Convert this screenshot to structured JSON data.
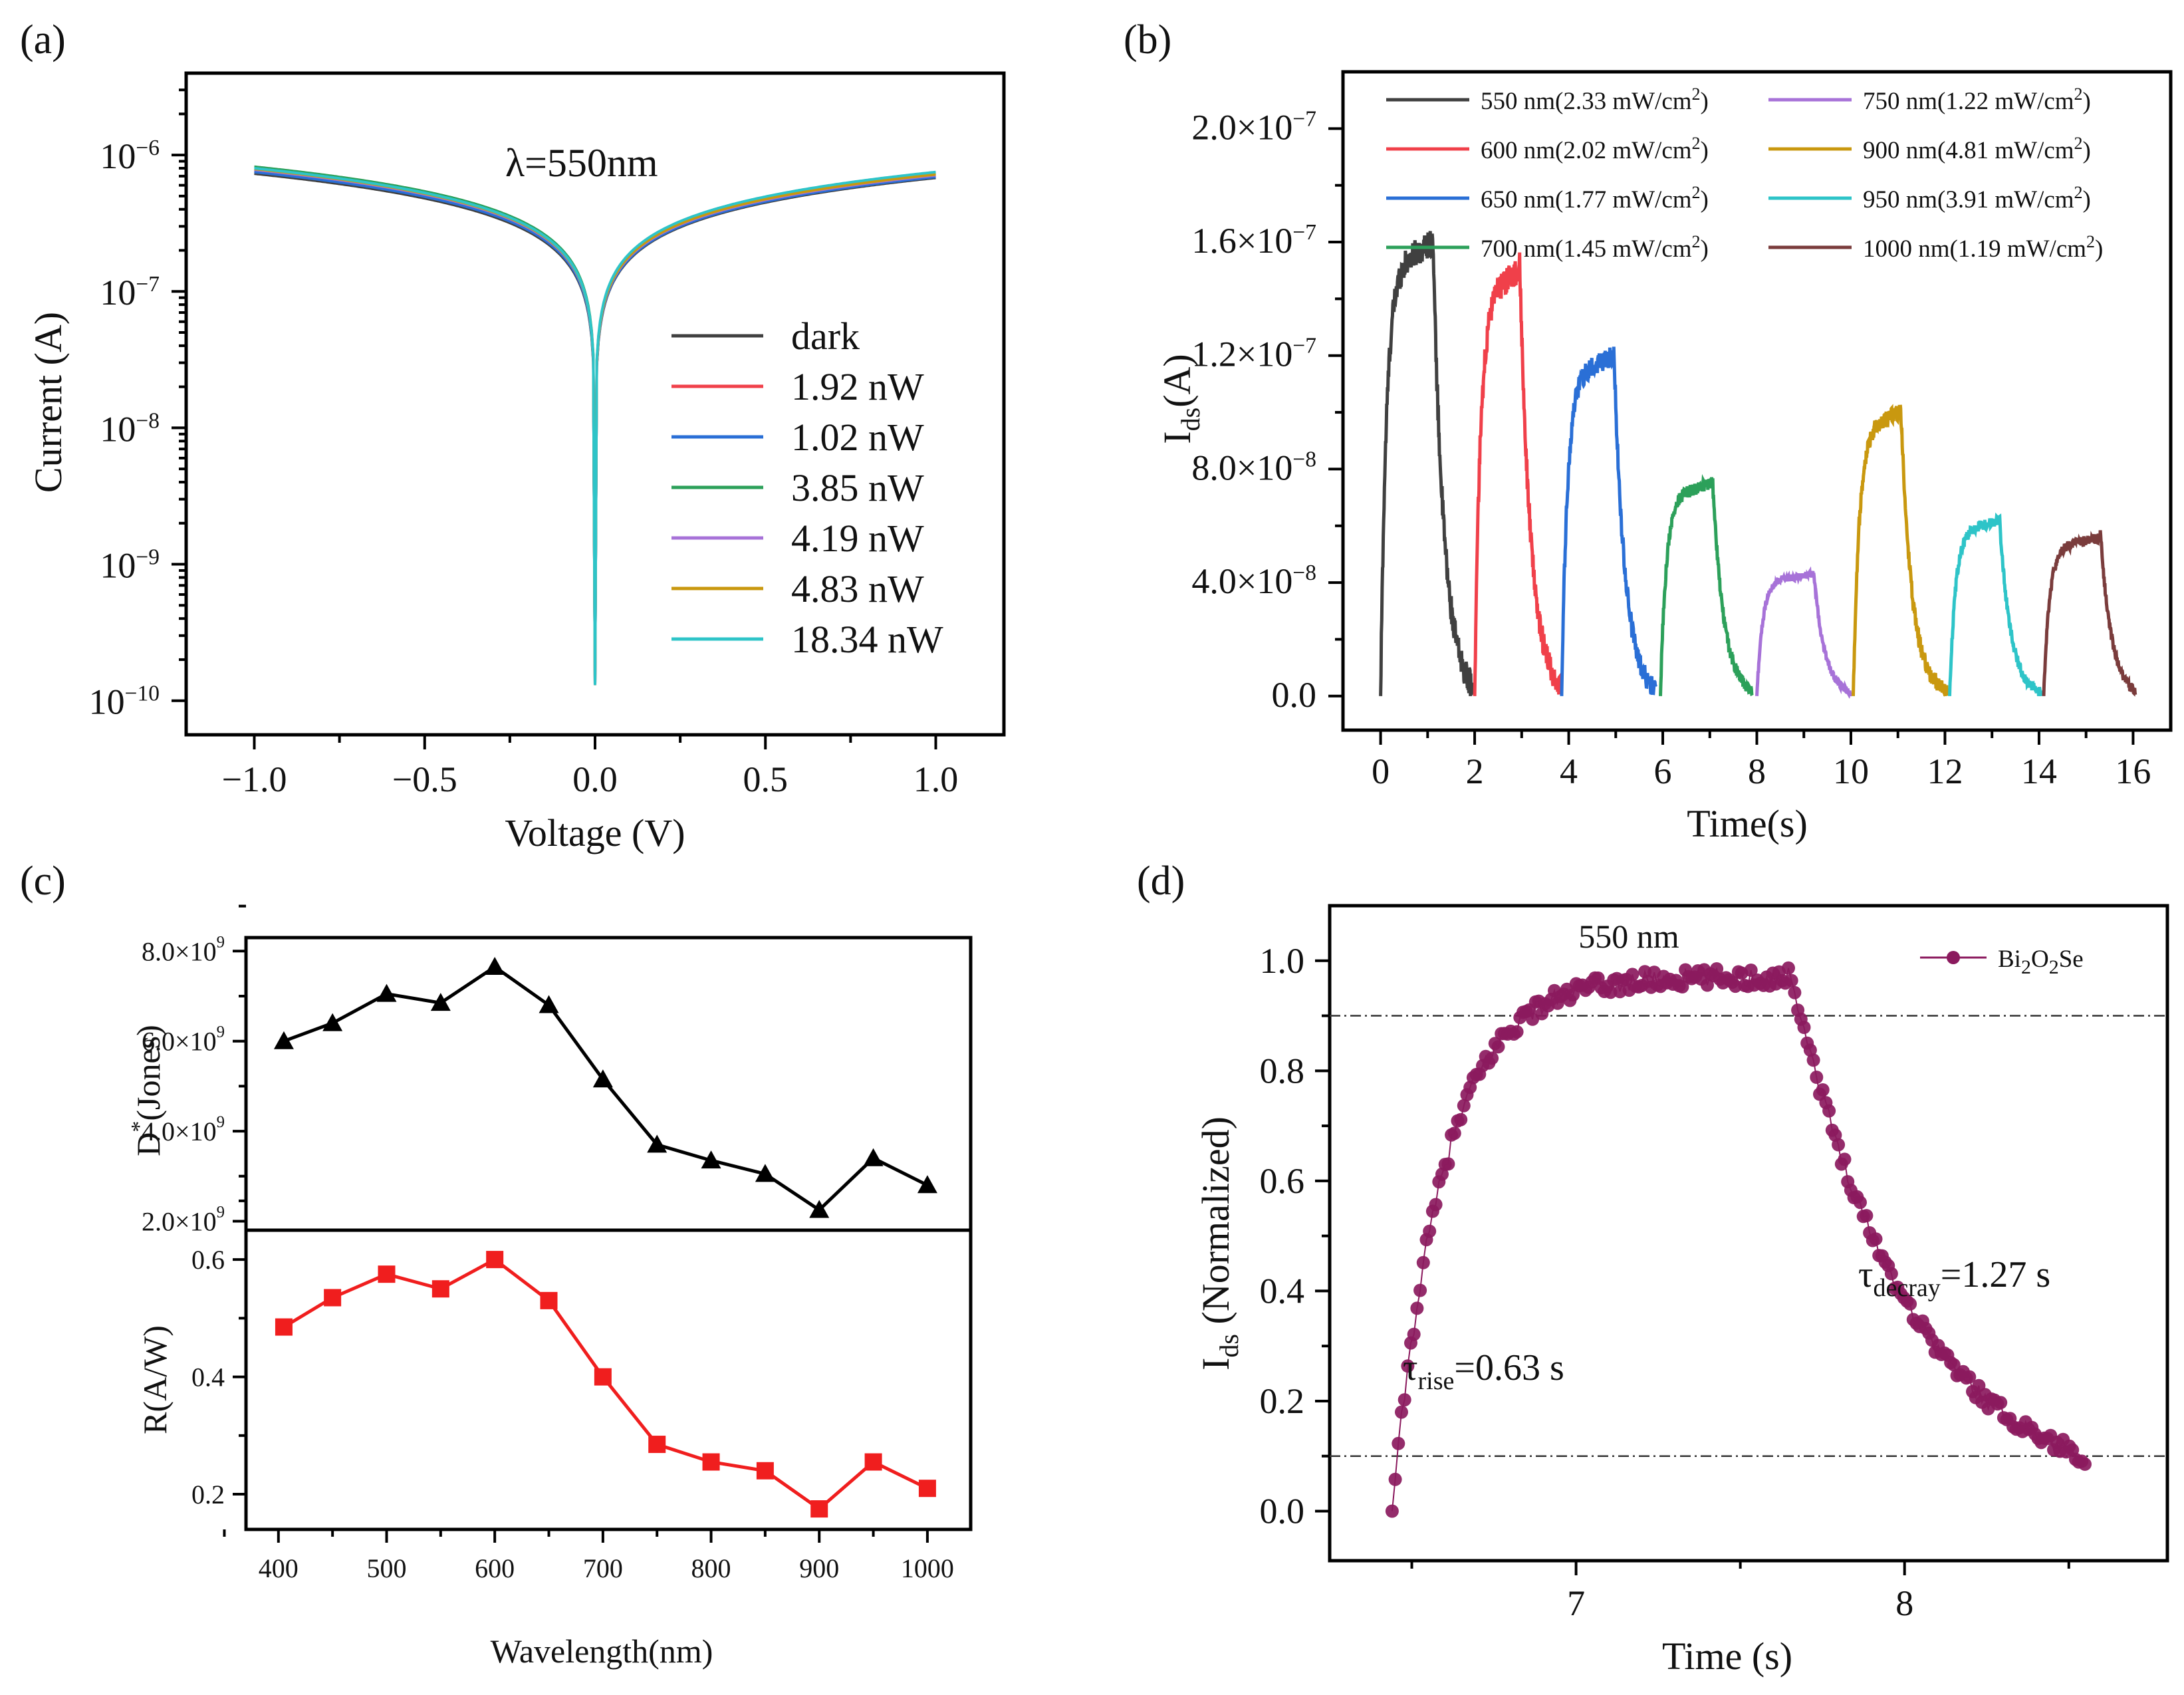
{
  "chart_data": [
    {
      "id": "a",
      "panel_label": "(a)",
      "type": "line",
      "yscale": "log",
      "annotation": "λ=550nm",
      "xlabel": "Voltage (V)",
      "ylabel": "Current (A)",
      "xlim": [
        -1.2,
        1.2
      ],
      "xticks": [
        "−1.0",
        "−0.5",
        "0.0",
        "0.5",
        "1.0"
      ],
      "xtick_values": [
        -1.0,
        -0.5,
        0.0,
        0.5,
        1.0
      ],
      "ylim_exp": [
        -10.25,
        -5.4
      ],
      "ytick_exponents": [
        -10,
        -9,
        -8,
        -7,
        -6
      ],
      "ytick_labels": [
        "10",
        "10",
        "10",
        "10",
        "10"
      ],
      "ytick_sup": [
        "−10",
        "−9",
        "−8",
        "−7",
        "−6"
      ],
      "model": "|I| = I1 * |V|^0.6 (+ small dip at 0 V)",
      "series": [
        {
          "name": "dark",
          "color": "#404040",
          "I_at_minus1V": 7.3e-07,
          "I_at_plus1V": 6.8e-07
        },
        {
          "name": "1.92 nW",
          "color": "#f0404a",
          "I_at_minus1V": 7.6e-07,
          "I_at_plus1V": 7e-07
        },
        {
          "name": "1.02 nW",
          "color": "#2a6fd6",
          "I_at_minus1V": 7.5e-07,
          "I_at_plus1V": 6.9e-07
        },
        {
          "name": "3.85 nW",
          "color": "#2ca05a",
          "I_at_minus1V": 8.2e-07,
          "I_at_plus1V": 7.3e-07
        },
        {
          "name": "4.19 nW",
          "color": "#a772d8",
          "I_at_minus1V": 7.8e-07,
          "I_at_plus1V": 7.1e-07
        },
        {
          "name": "4.83 nW",
          "color": "#c9980f",
          "I_at_minus1V": 7.9e-07,
          "I_at_plus1V": 7.2e-07
        },
        {
          "name": "18.34 nW",
          "color": "#2ec4c8",
          "I_at_minus1V": 8e-07,
          "I_at_plus1V": 7.5e-07
        }
      ],
      "min_current": 1.3e-10
    },
    {
      "id": "b",
      "panel_label": "(b)",
      "type": "line",
      "xlabel": "Time(s)",
      "ylabel_main": "I",
      "ylabel_sub": "ds",
      "ylabel_tail": "(A)",
      "xlim": [
        -0.8,
        16.8
      ],
      "ylim": [
        -1.2e-08,
        2.2e-07
      ],
      "xticks": [
        0,
        2,
        4,
        6,
        8,
        10,
        12,
        14,
        16
      ],
      "ytick_values": [
        0,
        4e-08,
        8e-08,
        1.2e-07,
        1.6e-07,
        2e-07
      ],
      "ytick_labels": [
        "0.0",
        "4.0×10",
        "8.0×10",
        "1.2×10",
        "1.6×10",
        "2.0×10"
      ],
      "ytick_sup": [
        "",
        "−8",
        "−8",
        "−7",
        "−7",
        "−7"
      ],
      "legend_sup": "2",
      "series": [
        {
          "label_pre": "550 nm(2.33 mW/cm",
          "label_post": ")",
          "color": "#404040",
          "t_start": 0.0,
          "peak": 1.6e-07,
          "t_on": 1.1,
          "t_end": 1.95
        },
        {
          "label_pre": "600 nm(2.02 mW/cm",
          "label_post": ")",
          "color": "#f0404a",
          "t_start": 2.0,
          "peak": 1.5e-07,
          "t_on": 0.95,
          "t_end": 1.85
        },
        {
          "label_pre": "650 nm(1.77 mW/cm",
          "label_post": ")",
          "color": "#2a6fd6",
          "t_start": 3.85,
          "peak": 1.2e-07,
          "t_on": 1.1,
          "t_end": 2.0
        },
        {
          "label_pre": "700 nm(1.45 mW/cm",
          "label_post": ")",
          "color": "#2ca05a",
          "t_start": 5.95,
          "peak": 7.5e-08,
          "t_on": 1.1,
          "t_end": 1.95
        },
        {
          "label_pre": "750 nm(1.22 mW/cm",
          "label_post": ")",
          "color": "#a772d8",
          "t_start": 8.0,
          "peak": 4.3e-08,
          "t_on": 1.2,
          "t_end": 2.0
        },
        {
          "label_pre": "900 nm(4.81 mW/cm",
          "label_post": ")",
          "color": "#c9980f",
          "t_start": 10.05,
          "peak": 1e-07,
          "t_on": 1.0,
          "t_end": 2.0
        },
        {
          "label_pre": "950 nm(3.91 mW/cm",
          "label_post": ")",
          "color": "#2ec4c8",
          "t_start": 12.1,
          "peak": 6.2e-08,
          "t_on": 1.05,
          "t_end": 1.95
        },
        {
          "label_pre": "1000 nm(1.19 mW/cm",
          "label_post": ")",
          "color": "#7a3c3c",
          "t_start": 14.1,
          "peak": 5.6e-08,
          "t_on": 1.2,
          "t_end": 1.95
        }
      ]
    },
    {
      "id": "c",
      "panel_label": "(c)",
      "type": "line",
      "xlabel": "Wavelength(nm)",
      "xlim": [
        370,
        1040
      ],
      "xticks": [
        400,
        500,
        600,
        700,
        800,
        900,
        1000
      ],
      "top": {
        "ylabel_main": "D",
        "ylabel_sup": "*",
        "ylabel_tail": "(Jones)",
        "color": "#000000",
        "marker": "triangle",
        "ylim": [
          1800000000.0,
          8300000000.0
        ],
        "ytick_values": [
          2000000000.0,
          4000000000.0,
          6000000000.0,
          8000000000.0
        ],
        "ytick_labels": [
          "2.0×10",
          "4.0×10",
          "6.0×10",
          "8.0×10"
        ],
        "ytick_sup": "9",
        "x": [
          405,
          450,
          500,
          550,
          600,
          650,
          700,
          750,
          800,
          850,
          900,
          950,
          1000
        ],
        "values": [
          6000000000.0,
          6400000000.0,
          7050000000.0,
          6850000000.0,
          7650000000.0,
          6800000000.0,
          5150000000.0,
          3700000000.0,
          3350000000.0,
          3050000000.0,
          2250000000.0,
          3400000000.0,
          2800000000.0
        ]
      },
      "bottom": {
        "ylabel": "R(A/W)",
        "color": "#f01e1e",
        "marker": "square",
        "ylim": [
          0.14,
          0.65
        ],
        "ytick_values": [
          0.2,
          0.4,
          0.6
        ],
        "ytick_labels": [
          "0.2",
          "0.4",
          "0.6"
        ],
        "x": [
          405,
          450,
          500,
          550,
          600,
          650,
          700,
          750,
          800,
          850,
          900,
          950,
          1000
        ],
        "values": [
          0.485,
          0.535,
          0.575,
          0.55,
          0.6,
          0.53,
          0.4,
          0.285,
          0.255,
          0.24,
          0.175,
          0.255,
          0.21
        ]
      }
    },
    {
      "id": "d",
      "panel_label": "(d)",
      "type": "scatter",
      "xlabel": "Time (s)",
      "ylabel_main": "I",
      "ylabel_sub": "ds",
      "ylabel_tail": " (Normalized)",
      "xlim": [
        6.25,
        8.8
      ],
      "ylim": [
        -0.09,
        1.1
      ],
      "xticks": [
        7,
        8
      ],
      "ytick_values": [
        0.0,
        0.2,
        0.4,
        0.6,
        0.8,
        1.0
      ],
      "ytick_labels": [
        "0.0",
        "0.2",
        "0.4",
        "0.6",
        "0.8",
        "1.0"
      ],
      "color": "#8b1a5e",
      "legend_pre": "Bi",
      "legend_sub1": "2",
      "legend_mid": "O",
      "legend_sub2": "2",
      "legend_post": "Se",
      "title": "550 nm",
      "thresholds": [
        0.9,
        0.1
      ],
      "rise_start": 6.44,
      "rise_tau": 0.155,
      "decay_start": 7.65,
      "decay_tau": 0.36,
      "end": 8.55,
      "rise_label_pre": "τ",
      "rise_label_sub": "rise",
      "rise_label_post": "=0.63 s",
      "decay_label_pre": "τ",
      "decay_label_sub": "decray",
      "decay_label_post": "=1.27 s"
    }
  ]
}
